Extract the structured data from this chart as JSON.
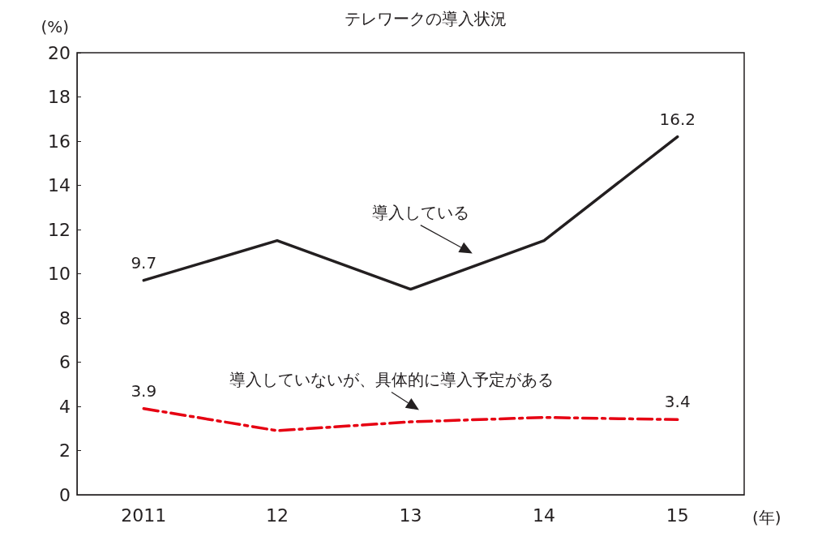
{
  "chart_data": {
    "type": "line",
    "title": "テレワークの導入状況",
    "xlabel": "(年)",
    "ylabel": "(%)",
    "categories": [
      "2011",
      "12",
      "13",
      "14",
      "15"
    ],
    "series": [
      {
        "name": "導入している",
        "color": "#231f20",
        "line_style": "solid",
        "values": [
          9.7,
          11.5,
          9.3,
          11.5,
          16.2
        ],
        "value_labels": [
          "9.7",
          null,
          null,
          null,
          "16.2"
        ]
      },
      {
        "name": "導入していないが、具体的に導入予定がある",
        "color": "#e60012",
        "line_style": "dashed",
        "values": [
          3.9,
          2.9,
          3.3,
          3.5,
          3.4
        ],
        "value_labels": [
          "3.9",
          null,
          null,
          null,
          "3.4"
        ]
      }
    ],
    "ylim": [
      0,
      20
    ],
    "yticks": [
      0,
      2,
      4,
      6,
      8,
      10,
      12,
      14,
      16,
      18,
      20
    ],
    "grid": false,
    "legend": false,
    "marker": "none"
  }
}
